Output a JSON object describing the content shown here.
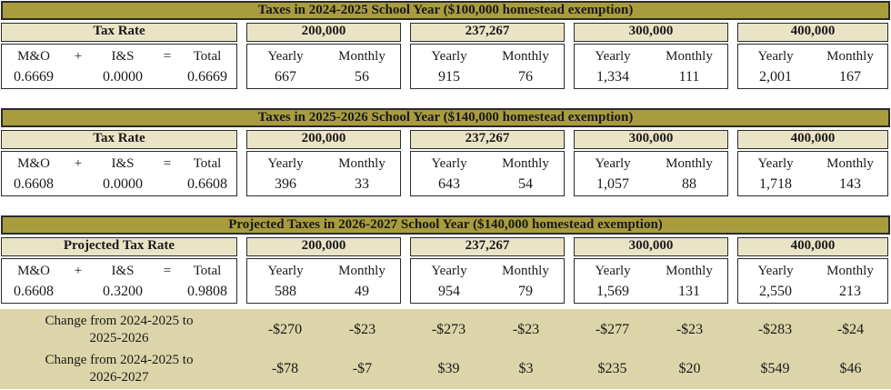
{
  "colors": {
    "gold": "#a99c3e",
    "beige": "#eae4c6",
    "khaki": "#dcd5a9",
    "border": "#2b2b2b",
    "text": "#1a1a1a"
  },
  "labels": {
    "m_and_o": "M&O",
    "plus": "+",
    "i_and_s": "I&S",
    "equals": "=",
    "total": "Total",
    "yearly": "Yearly",
    "monthly": "Monthly"
  },
  "tables": [
    {
      "title": "Taxes in 2024-2025 School Year ($100,000 homestead exemption)",
      "rate_header": "Tax Rate",
      "rate_values": {
        "m_and_o": "0.6669",
        "i_and_s": "0.0000",
        "total": "0.6669"
      },
      "groups": [
        {
          "label": "200,000",
          "yearly": "667",
          "monthly": "56"
        },
        {
          "label": "237,267",
          "yearly": "915",
          "monthly": "76"
        },
        {
          "label": "300,000",
          "yearly": "1,334",
          "monthly": "111"
        },
        {
          "label": "400,000",
          "yearly": "2,001",
          "monthly": "167"
        }
      ]
    },
    {
      "title": "Taxes in 2025-2026 School Year ($140,000 homestead exemption)",
      "rate_header": "Tax Rate",
      "rate_values": {
        "m_and_o": "0.6608",
        "i_and_s": "0.0000",
        "total": "0.6608"
      },
      "groups": [
        {
          "label": "200,000",
          "yearly": "396",
          "monthly": "33"
        },
        {
          "label": "237,267",
          "yearly": "643",
          "monthly": "54"
        },
        {
          "label": "300,000",
          "yearly": "1,057",
          "monthly": "88"
        },
        {
          "label": "400,000",
          "yearly": "1,718",
          "monthly": "143"
        }
      ]
    },
    {
      "title": "Projected Taxes in 2026-2027 School Year ($140,000 homestead exemption)",
      "rate_header": "Projected Tax Rate",
      "rate_values": {
        "m_and_o": "0.6608",
        "i_and_s": "0.3200",
        "total": "0.9808"
      },
      "groups": [
        {
          "label": "200,000",
          "yearly": "588",
          "monthly": "49"
        },
        {
          "label": "237,267",
          "yearly": "954",
          "monthly": "79"
        },
        {
          "label": "300,000",
          "yearly": "1,569",
          "monthly": "131"
        },
        {
          "label": "400,000",
          "yearly": "2,550",
          "monthly": "213"
        }
      ]
    }
  ],
  "changes": [
    {
      "label": "Change from 2024-2025 to\n2025-2026",
      "values": [
        "-$270",
        "-$23",
        "-$273",
        "-$23",
        "-$277",
        "-$23",
        "-$283",
        "-$24"
      ]
    },
    {
      "label": "Change from 2024-2025 to\n2026-2027",
      "values": [
        "-$78",
        "-$7",
        "$39",
        "$3",
        "$235",
        "$20",
        "$549",
        "$46"
      ]
    }
  ]
}
